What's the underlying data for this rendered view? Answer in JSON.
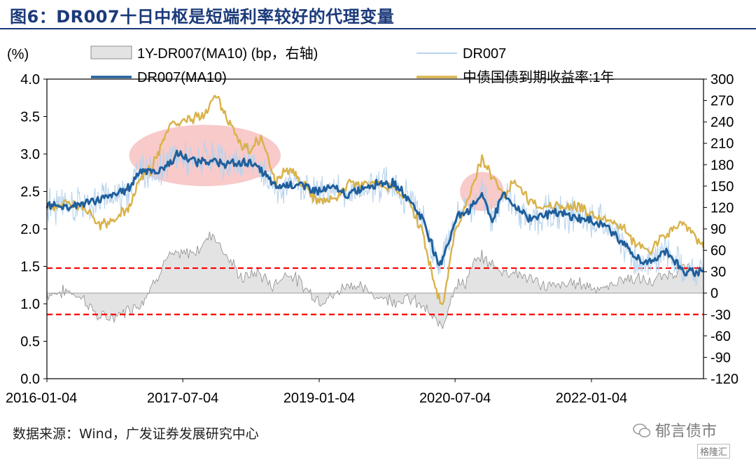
{
  "figure_title": "图6：DR007十日中枢是短端利率较好的代理变量",
  "source_text": "数据来源：Wind，广发证券发展研究中心",
  "watermark": "郁言债市",
  "watermark2": "格隆汇",
  "chart_data": {
    "type": "line",
    "left_axis_unit": "(%)",
    "right_axis_unit": "",
    "ylim_left": [
      0,
      4
    ],
    "ylim_right": [
      -120,
      300
    ],
    "yticks_left": [
      "0.0",
      "0.5",
      "1.0",
      "1.5",
      "2.0",
      "2.5",
      "3.0",
      "3.5",
      "4.0"
    ],
    "yticks_right": [
      "-120",
      "-90",
      "-60",
      "-30",
      "0",
      "30",
      "60",
      "90",
      "120",
      "150",
      "180",
      "210",
      "240",
      "270",
      "300"
    ],
    "x_ticks": [
      "2016-01-04",
      "2017-07-04",
      "2019-01-04",
      "2020-07-04",
      "2022-01-04"
    ],
    "x_range": [
      "2016-01-04",
      "2023-03-31"
    ],
    "legend": [
      {
        "name": "1Y-DR007(MA10) (bp，右轴)",
        "kind": "area",
        "color": "#bfbfbf"
      },
      {
        "name": "DR007",
        "kind": "line",
        "color": "#b8d3ec"
      },
      {
        "name": "DR007(MA10)",
        "kind": "line",
        "color": "#1f5f9c"
      },
      {
        "name": "中债国债到期收益率:1年",
        "kind": "line",
        "color": "#d9b24a"
      }
    ],
    "reference_lines": [
      {
        "axis": "right",
        "value": 35,
        "color": "#ff0000",
        "style": "dashed"
      },
      {
        "axis": "right",
        "value": -30,
        "color": "#ff0000",
        "style": "dashed"
      }
    ],
    "highlights": [
      {
        "cx": "2017-10-01",
        "cy": 2.98,
        "rx_days": 305,
        "ry": 0.41,
        "color": "#f4a6a6"
      },
      {
        "cx": "2020-10-20",
        "cy": 2.5,
        "rx_days": 88,
        "ry": 0.26,
        "color": "#f4a6a6"
      }
    ],
    "series": [
      {
        "name": "DR007(MA10)",
        "axis": "left",
        "color": "#1f5f9c",
        "points": [
          [
            "2016-01-04",
            2.32
          ],
          [
            "2016-04-01",
            2.3
          ],
          [
            "2016-07-01",
            2.36
          ],
          [
            "2016-09-01",
            2.42
          ],
          [
            "2016-10-01",
            2.45
          ],
          [
            "2016-12-01",
            2.55
          ],
          [
            "2017-01-15",
            2.8
          ],
          [
            "2017-03-15",
            2.75
          ],
          [
            "2017-05-15",
            2.88
          ],
          [
            "2017-06-15",
            3.0
          ],
          [
            "2017-08-15",
            2.9
          ],
          [
            "2017-10-01",
            2.92
          ],
          [
            "2017-12-01",
            2.88
          ],
          [
            "2018-02-01",
            2.86
          ],
          [
            "2018-04-01",
            2.9
          ],
          [
            "2018-06-01",
            2.72
          ],
          [
            "2018-07-15",
            2.55
          ],
          [
            "2018-09-01",
            2.6
          ],
          [
            "2018-11-01",
            2.58
          ],
          [
            "2019-01-04",
            2.5
          ],
          [
            "2019-03-01",
            2.55
          ],
          [
            "2019-05-01",
            2.45
          ],
          [
            "2019-07-01",
            2.55
          ],
          [
            "2019-09-01",
            2.62
          ],
          [
            "2019-11-01",
            2.6
          ],
          [
            "2020-01-01",
            2.4
          ],
          [
            "2020-03-01",
            2.1
          ],
          [
            "2020-04-01",
            1.8
          ],
          [
            "2020-05-01",
            1.5
          ],
          [
            "2020-06-15",
            1.9
          ],
          [
            "2020-07-15",
            2.2
          ],
          [
            "2020-09-01",
            2.25
          ],
          [
            "2020-10-20",
            2.48
          ],
          [
            "2020-12-01",
            2.1
          ],
          [
            "2021-01-15",
            2.5
          ],
          [
            "2021-03-01",
            2.3
          ],
          [
            "2021-05-01",
            2.15
          ],
          [
            "2021-07-01",
            2.2
          ],
          [
            "2021-09-01",
            2.2
          ],
          [
            "2021-11-01",
            2.15
          ],
          [
            "2022-01-04",
            2.1
          ],
          [
            "2022-03-01",
            2.05
          ],
          [
            "2022-05-01",
            1.85
          ],
          [
            "2022-07-01",
            1.6
          ],
          [
            "2022-09-01",
            1.55
          ],
          [
            "2022-11-01",
            1.72
          ],
          [
            "2023-01-15",
            1.4
          ],
          [
            "2023-03-31",
            1.45
          ]
        ]
      },
      {
        "name": "中债国债到期收益率:1年",
        "axis": "left",
        "color": "#d9b24a",
        "points": [
          [
            "2016-01-04",
            2.3
          ],
          [
            "2016-04-01",
            2.35
          ],
          [
            "2016-06-01",
            2.28
          ],
          [
            "2016-08-01",
            2.05
          ],
          [
            "2016-10-01",
            2.12
          ],
          [
            "2016-12-01",
            2.3
          ],
          [
            "2017-01-15",
            2.7
          ],
          [
            "2017-03-01",
            2.8
          ],
          [
            "2017-05-15",
            3.4
          ],
          [
            "2017-07-15",
            3.45
          ],
          [
            "2017-09-15",
            3.5
          ],
          [
            "2017-11-15",
            3.78
          ],
          [
            "2018-01-15",
            3.35
          ],
          [
            "2018-03-15",
            3.05
          ],
          [
            "2018-05-15",
            3.2
          ],
          [
            "2018-07-15",
            2.6
          ],
          [
            "2018-09-01",
            2.8
          ],
          [
            "2018-11-01",
            2.6
          ],
          [
            "2019-01-04",
            2.35
          ],
          [
            "2019-03-01",
            2.4
          ],
          [
            "2019-05-01",
            2.6
          ],
          [
            "2019-07-01",
            2.6
          ],
          [
            "2019-09-01",
            2.6
          ],
          [
            "2019-11-01",
            2.55
          ],
          [
            "2020-01-01",
            2.35
          ],
          [
            "2020-03-01",
            1.9
          ],
          [
            "2020-04-15",
            1.2
          ],
          [
            "2020-05-15",
            0.95
          ],
          [
            "2020-07-01",
            1.9
          ],
          [
            "2020-08-15",
            2.3
          ],
          [
            "2020-09-15",
            2.6
          ],
          [
            "2020-10-20",
            2.95
          ],
          [
            "2020-12-01",
            2.7
          ],
          [
            "2021-01-15",
            2.45
          ],
          [
            "2021-03-01",
            2.65
          ],
          [
            "2021-05-01",
            2.35
          ],
          [
            "2021-07-01",
            2.3
          ],
          [
            "2021-09-01",
            2.3
          ],
          [
            "2021-11-01",
            2.3
          ],
          [
            "2022-01-04",
            2.2
          ],
          [
            "2022-03-01",
            2.1
          ],
          [
            "2022-05-01",
            2.05
          ],
          [
            "2022-07-01",
            1.8
          ],
          [
            "2022-09-01",
            1.7
          ],
          [
            "2022-11-01",
            1.95
          ],
          [
            "2023-01-15",
            2.1
          ],
          [
            "2023-03-31",
            1.75
          ]
        ]
      },
      {
        "name": "1Y-DR007(MA10) (bp，右轴)",
        "axis": "right",
        "color": "#bfbfbf",
        "points": [
          [
            "2016-01-04",
            -2
          ],
          [
            "2016-04-01",
            3
          ],
          [
            "2016-06-01",
            -8
          ],
          [
            "2016-08-01",
            -35
          ],
          [
            "2016-10-01",
            -33
          ],
          [
            "2016-12-01",
            -22
          ],
          [
            "2017-01-15",
            -15
          ],
          [
            "2017-03-01",
            10
          ],
          [
            "2017-05-01",
            50
          ],
          [
            "2017-07-15",
            55
          ],
          [
            "2017-09-01",
            60
          ],
          [
            "2017-11-01",
            85
          ],
          [
            "2018-01-01",
            50
          ],
          [
            "2018-03-01",
            20
          ],
          [
            "2018-05-01",
            30
          ],
          [
            "2018-07-01",
            10
          ],
          [
            "2018-09-01",
            30
          ],
          [
            "2018-11-01",
            10
          ],
          [
            "2019-01-04",
            -10
          ],
          [
            "2019-03-01",
            -5
          ],
          [
            "2019-05-01",
            15
          ],
          [
            "2019-07-01",
            5
          ],
          [
            "2019-09-01",
            -5
          ],
          [
            "2019-11-01",
            -10
          ],
          [
            "2020-01-01",
            -8
          ],
          [
            "2020-03-01",
            -20
          ],
          [
            "2020-04-15",
            -40
          ],
          [
            "2020-05-15",
            -45
          ],
          [
            "2020-07-01",
            10
          ],
          [
            "2020-08-15",
            15
          ],
          [
            "2020-09-15",
            40
          ],
          [
            "2020-10-20",
            50
          ],
          [
            "2020-12-01",
            40
          ],
          [
            "2021-01-15",
            30
          ],
          [
            "2021-03-01",
            30
          ],
          [
            "2021-05-01",
            20
          ],
          [
            "2021-07-01",
            10
          ],
          [
            "2021-09-01",
            10
          ],
          [
            "2021-11-01",
            15
          ],
          [
            "2022-01-04",
            10
          ],
          [
            "2022-03-01",
            5
          ],
          [
            "2022-05-01",
            20
          ],
          [
            "2022-07-01",
            20
          ],
          [
            "2022-09-01",
            15
          ],
          [
            "2022-11-01",
            25
          ],
          [
            "2023-01-15",
            35
          ],
          [
            "2023-03-31",
            30
          ]
        ]
      }
    ]
  }
}
